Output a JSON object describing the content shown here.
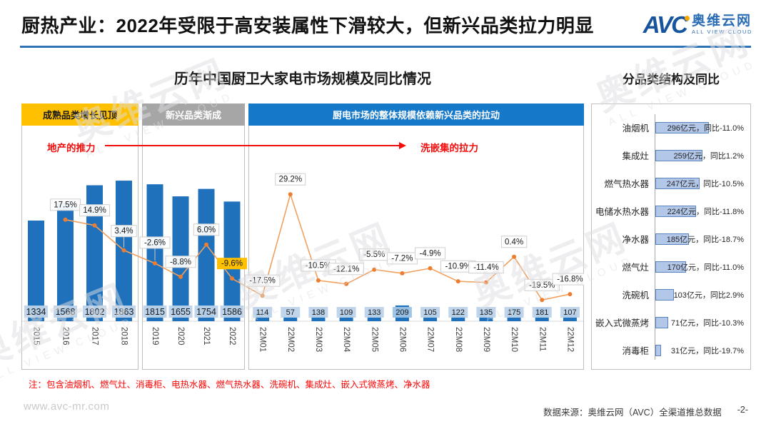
{
  "slide": {
    "title": "厨热产业：2022年受限于高安装属性下滑较大，但新兴品类拉力明显",
    "note": "注：包含油烟机、燃气灶、消毒柜、电热水器、燃气热水器、洗碗机、集成灶、嵌入式微蒸烤、净水器",
    "website": "www.avc-mr.com",
    "data_source": "数据来源：奥维云网（AVC）全渠道推总数据",
    "page_number": "-2-"
  },
  "logo": {
    "abbr": "AVC",
    "cn": "奥维云网",
    "en": "ALL VIEW CLOUD"
  },
  "watermark": {
    "cn": "奥维云网",
    "en": "ALL VIEW CLOUD"
  },
  "left_chart": {
    "title": "历年中国厨卫大家电市场规模及同比情况",
    "annotation_left": "地产的推力",
    "annotation_right": "洗嵌集的拉力"
  },
  "right_chart": {
    "title": "分品类结构及同比"
  },
  "colors": {
    "accent_blue": "#2E74B5",
    "bar_blue": "#1F71BC",
    "bar_label_bg": "#BDD3EA",
    "bar_label_bg_highlight": "#9CC2E5",
    "line_orange": "#F0A160",
    "marker_orange": "#ED7D31",
    "highlight_yellow": "#FFC000",
    "band_yellow": "#FFC000",
    "band_gray": "#A6A6A6",
    "band_blue": "#1578C8",
    "cat_bar_fill": "#B3C7E8",
    "cat_bar_border": "#5B83BE",
    "red_annotation": "#F20D0D"
  },
  "chart_data": [
    {
      "type": "bar+line",
      "title": "历年中国厨卫大家电市场规模及同比情况",
      "bar_series_name": "市场规模（亿元）",
      "line_series_name": "同比（%）",
      "segments": [
        {
          "header": "成熟品类增长见顶",
          "header_bg": "#FFC000",
          "header_fg": "#1a1a1a",
          "categories": [
            "2015",
            "2016",
            "2017",
            "2018"
          ],
          "bar_values": [
            1334,
            1568,
            1802,
            1863
          ],
          "line_values_pct": [
            null,
            17.5,
            14.9,
            3.4
          ]
        },
        {
          "header": "新兴品类渐成",
          "header_bg": "#A6A6A6",
          "header_fg": "#ffffff",
          "categories": [
            "2019",
            "2020",
            "2021",
            "2022"
          ],
          "bar_values": [
            1815,
            1655,
            1754,
            1586
          ],
          "line_values_pct": [
            -2.6,
            -8.8,
            6.0,
            -9.6
          ]
        },
        {
          "header": "厨电市场的整体规模依赖新兴品类的拉动",
          "header_bg": "#1578C8",
          "header_fg": "#ffffff",
          "categories": [
            "22M01",
            "22M02",
            "22M03",
            "22M04",
            "22M05",
            "22M06",
            "22M07",
            "22M08",
            "22M09",
            "22M10",
            "22M11",
            "22M12"
          ],
          "bar_values": [
            114,
            57,
            138,
            109,
            133,
            209,
            105,
            122,
            135,
            175,
            181,
            107
          ],
          "line_values_pct": [
            -17.5,
            29.2,
            -10.5,
            -12.1,
            -5.5,
            -7.2,
            -4.9,
            -10.9,
            -11.4,
            0.4,
            -19.5,
            -16.8
          ]
        }
      ],
      "highlighted_line_label": {
        "category": "2022",
        "value_pct": -9.6
      },
      "highlighted_bar_label": {
        "category": "22M06",
        "value": 209
      },
      "annotations": [
        "地产的推力",
        "洗嵌集的拉力"
      ]
    },
    {
      "type": "bar",
      "orientation": "horizontal",
      "title": "分品类结构及同比",
      "unit": "亿元",
      "categories": [
        "油烟机",
        "集成灶",
        "燃气热水器",
        "电储水热水器",
        "净水器",
        "燃气灶",
        "洗碗机",
        "嵌入式微蒸烤",
        "消毒柜"
      ],
      "values": [
        296,
        259,
        247,
        224,
        185,
        170,
        103,
        71,
        31
      ],
      "yoy_pct": [
        -11.0,
        1.2,
        -10.5,
        -11.8,
        -18.7,
        -11.0,
        2.9,
        -10.3,
        -19.7
      ],
      "labels": [
        "296亿元，同比-11.0%",
        "259亿元，同比1.2%",
        "247亿元，同比-10.5%",
        "224亿元，同比-11.8%",
        "185亿元，同比-18.7%",
        "170亿元，同比-11.0%",
        "103亿元，同比2.9%",
        "71亿元，同比-10.3%",
        "31亿元，同比-19.7%"
      ]
    }
  ]
}
